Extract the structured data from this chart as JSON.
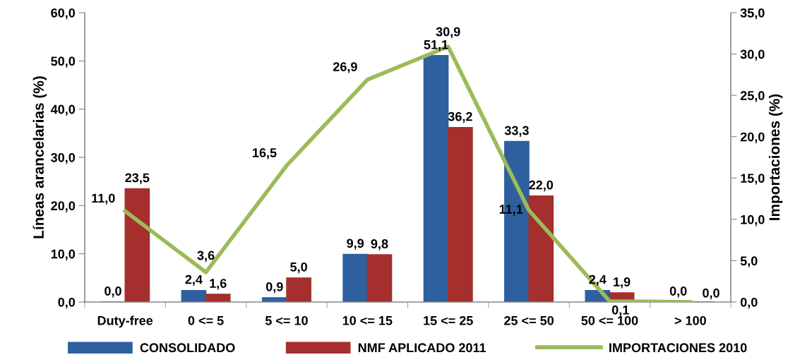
{
  "chart_data": {
    "type": "bar",
    "ylabel": "Líneas arancelarias (%)",
    "y2label": "Importaciones (%)",
    "categories": [
      "Duty-free",
      "0 <= 5",
      "5 <= 10",
      "10 <= 15",
      "15 <= 25",
      "25 <= 50",
      "50 <= 100",
      "> 100"
    ],
    "series": [
      {
        "name": "CONSOLIDADO",
        "color": "#2e5f9e",
        "values": [
          0.0,
          2.4,
          0.9,
          9.9,
          51.1,
          33.3,
          2.4,
          0.0
        ],
        "value_labels": [
          "0,0",
          "2,4",
          "0,9",
          "9,9",
          "51,1",
          "33,3",
          "2,4",
          "0,0"
        ]
      },
      {
        "name": "NMF APLICADO 2011",
        "color": "#a52f2c",
        "values": [
          23.5,
          1.6,
          5.0,
          9.8,
          36.2,
          22.0,
          1.9,
          0.0
        ],
        "value_labels": [
          "23,5",
          "1,6",
          "5,0",
          "9,8",
          "36,2",
          "22,0",
          "1,9",
          null
        ]
      },
      {
        "name": "IMPORTACIONES 2010",
        "type": "line",
        "axis": "y2",
        "color": "#9bbb59",
        "values": [
          11.0,
          3.6,
          16.5,
          26.9,
          30.9,
          11.1,
          0.1,
          0.0
        ],
        "value_labels": [
          "11,0",
          "3,6",
          "16,5",
          "26,9",
          "30,9",
          "11,1",
          "0,1",
          "0,0"
        ]
      }
    ],
    "ylim": [
      0,
      60
    ],
    "yticks": [
      {
        "value": 0,
        "label": "0,0"
      },
      {
        "value": 10,
        "label": "10,0"
      },
      {
        "value": 20,
        "label": "20,0"
      },
      {
        "value": 30,
        "label": "30,0"
      },
      {
        "value": 40,
        "label": "40,0"
      },
      {
        "value": 50,
        "label": "50,0"
      },
      {
        "value": 60,
        "label": "60,0"
      }
    ],
    "y2lim": [
      0,
      35
    ],
    "y2ticks": [
      {
        "value": 0,
        "label": "0,0"
      },
      {
        "value": 5,
        "label": "5,0"
      },
      {
        "value": 10,
        "label": "10,0"
      },
      {
        "value": 15,
        "label": "15,0"
      },
      {
        "value": 20,
        "label": "20,0"
      },
      {
        "value": 25,
        "label": "25,0"
      },
      {
        "value": 30,
        "label": "30,0"
      },
      {
        "value": 35,
        "label": "35,0"
      }
    ],
    "legend": "bottom",
    "grid": false
  }
}
